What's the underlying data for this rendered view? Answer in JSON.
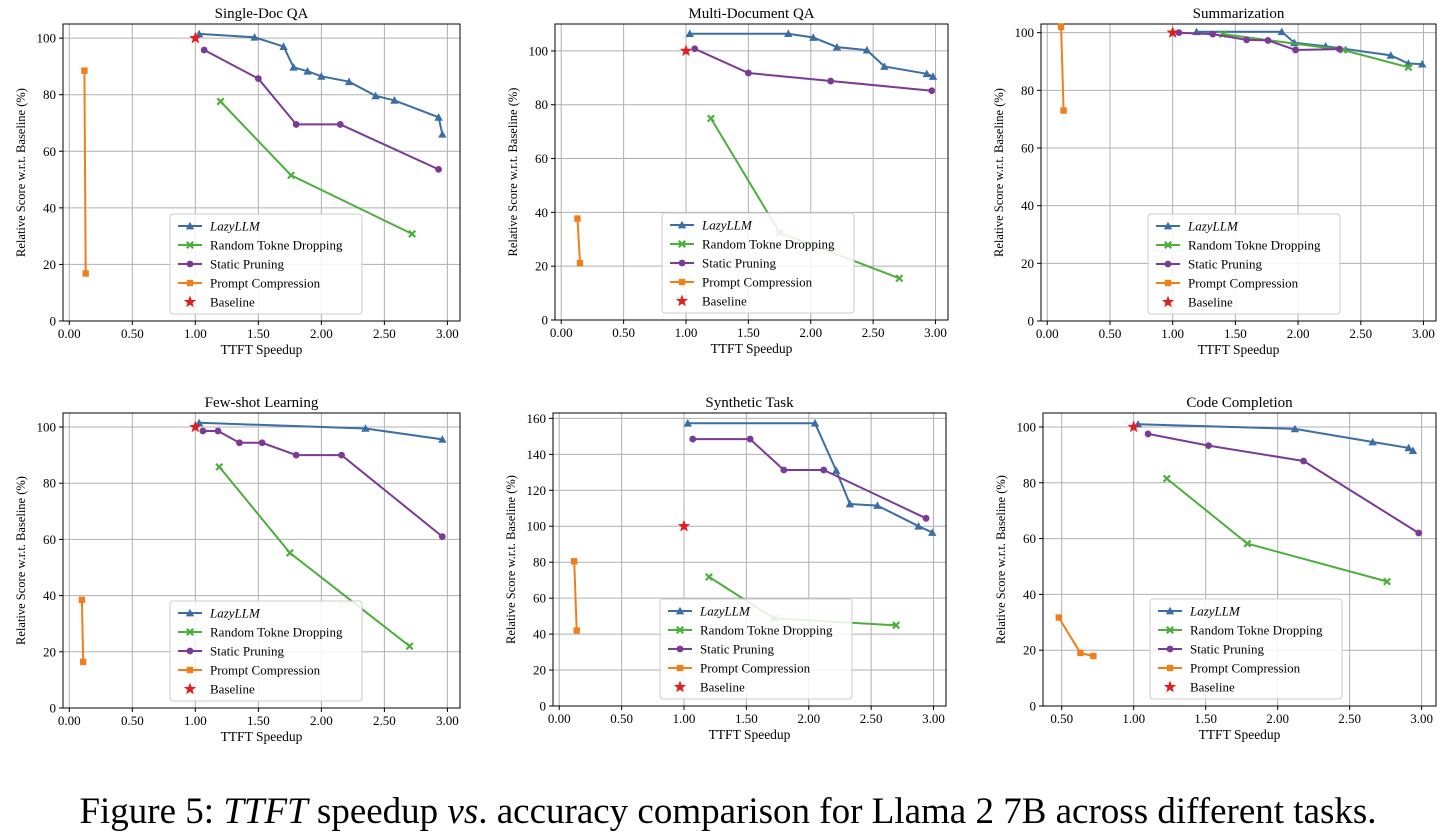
{
  "caption": {
    "prefix": "Figure 5: ",
    "italic1": "TTFT",
    "mid1": " speedup ",
    "italic2": "vs",
    "rest": ". accuracy comparison for Llama 2 7B across different tasks."
  },
  "colors": {
    "lazyllm": "#3a6ea5",
    "random": "#4caf3c",
    "static": "#7b3a96",
    "prompt": "#f07f1b",
    "baseline": "#e02020"
  },
  "legend": [
    "LazyLLM",
    "Random Tokne Dropping",
    "Static Pruning",
    "Prompt Compression",
    "Baseline"
  ],
  "chart_data": [
    {
      "type": "line",
      "title": "Single-Doc QA",
      "xlabel": "TTFT Speedup",
      "ylabel": "Relative Score w.r.t. Baseline (%)",
      "xlim": [
        -0.05,
        3.1
      ],
      "ylim": [
        0,
        105
      ],
      "xticks": [
        "0.00",
        "0.50",
        "1.00",
        "1.50",
        "2.00",
        "2.50",
        "3.00"
      ],
      "yticks": [
        "0",
        "20",
        "40",
        "60",
        "80",
        "100"
      ],
      "grid": true,
      "legend_position": "lower-center",
      "series": [
        {
          "name": "LazyLLM",
          "marker": "triangle",
          "x": [
            1.03,
            1.47,
            1.7,
            1.78,
            1.89,
            2.0,
            2.22,
            2.43,
            2.58,
            2.93,
            2.96
          ],
          "y": [
            101.5,
            100.3,
            97.0,
            89.7,
            88.3,
            86.5,
            84.6,
            79.6,
            78.0,
            72.0,
            66.0
          ]
        },
        {
          "name": "Random Tokne Dropping",
          "marker": "x",
          "x": [
            1.2,
            1.76,
            2.72
          ],
          "y": [
            77.6,
            51.5,
            30.8
          ]
        },
        {
          "name": "Static Pruning",
          "marker": "circle",
          "x": [
            1.07,
            1.5,
            1.8,
            2.15,
            2.93
          ],
          "y": [
            95.8,
            85.7,
            69.5,
            69.5,
            53.6
          ]
        },
        {
          "name": "Prompt Compression",
          "marker": "square",
          "x": [
            0.12,
            0.13
          ],
          "y": [
            88.5,
            16.8
          ]
        },
        {
          "name": "Baseline",
          "marker": "star",
          "x": [
            1.0
          ],
          "y": [
            100.0
          ]
        }
      ]
    },
    {
      "type": "line",
      "title": "Multi-Document QA",
      "xlabel": "TTFT Speedup",
      "ylabel": "Relative Score w.r.t. Baseline (%)",
      "xlim": [
        -0.05,
        3.1
      ],
      "ylim": [
        0,
        110
      ],
      "xticks": [
        "0.00",
        "0.50",
        "1.00",
        "1.50",
        "2.00",
        "2.50",
        "3.00"
      ],
      "yticks": [
        "0",
        "20",
        "40",
        "60",
        "80",
        "100"
      ],
      "grid": true,
      "legend_position": "lower-center",
      "series": [
        {
          "name": "LazyLLM",
          "marker": "triangle",
          "x": [
            1.03,
            1.82,
            2.02,
            2.21,
            2.45,
            2.59,
            2.93,
            2.98
          ],
          "y": [
            106.4,
            106.4,
            105.0,
            101.4,
            100.3,
            94.2,
            91.5,
            90.5
          ]
        },
        {
          "name": "Random Tokne Dropping",
          "marker": "x",
          "x": [
            1.2,
            1.75,
            2.71
          ],
          "y": [
            74.9,
            32.5,
            15.5
          ]
        },
        {
          "name": "Static Pruning",
          "marker": "circle",
          "x": [
            1.07,
            1.5,
            2.16,
            2.97
          ],
          "y": [
            100.8,
            91.8,
            88.8,
            85.2
          ]
        },
        {
          "name": "Prompt Compression",
          "marker": "square",
          "x": [
            0.13,
            0.15
          ],
          "y": [
            37.7,
            21.1
          ]
        },
        {
          "name": "Baseline",
          "marker": "star",
          "x": [
            1.0
          ],
          "y": [
            100.0
          ]
        }
      ]
    },
    {
      "type": "line",
      "title": "Summarization",
      "xlabel": "TTFT Speedup",
      "ylabel": "Relative Score w.r.t. Baseline (%)",
      "xlim": [
        -0.05,
        3.1
      ],
      "ylim": [
        0,
        103
      ],
      "xticks": [
        "0.00",
        "0.50",
        "1.00",
        "1.50",
        "2.00",
        "2.50",
        "3.00"
      ],
      "yticks": [
        "0",
        "20",
        "40",
        "60",
        "80",
        "100"
      ],
      "grid": true,
      "legend_position": "lower-center",
      "series": [
        {
          "name": "LazyLLM",
          "marker": "triangle",
          "x": [
            1.19,
            1.87,
            1.97,
            2.22,
            2.74,
            2.88,
            2.99
          ],
          "y": [
            100.3,
            100.3,
            96.5,
            95.3,
            92.1,
            89.3,
            89.1
          ]
        },
        {
          "name": "Random Tokne Dropping",
          "marker": "x",
          "x": [
            1.4,
            2.36,
            2.88
          ],
          "y": [
            99.5,
            94.0,
            88.0
          ]
        },
        {
          "name": "Static Pruning",
          "marker": "circle",
          "x": [
            1.05,
            1.32,
            1.59,
            1.76,
            1.98,
            2.33
          ],
          "y": [
            100.0,
            99.5,
            97.5,
            97.3,
            94.0,
            94.3
          ]
        },
        {
          "name": "Prompt Compression",
          "marker": "square",
          "x": [
            0.11,
            0.13
          ],
          "y": [
            102.0,
            73.0
          ]
        },
        {
          "name": "Baseline",
          "marker": "star",
          "x": [
            1.0
          ],
          "y": [
            100.0
          ]
        }
      ]
    },
    {
      "type": "line",
      "title": "Few-shot Learning",
      "xlabel": "TTFT Speedup",
      "ylabel": "Relative Score w.r.t. Baseline (%)",
      "xlim": [
        -0.05,
        3.1
      ],
      "ylim": [
        0,
        105
      ],
      "xticks": [
        "0.00",
        "0.50",
        "1.00",
        "1.50",
        "2.00",
        "2.50",
        "3.00"
      ],
      "yticks": [
        "0",
        "20",
        "40",
        "60",
        "80",
        "100"
      ],
      "grid": true,
      "legend_position": "lower-center",
      "series": [
        {
          "name": "LazyLLM",
          "marker": "triangle",
          "x": [
            1.03,
            2.35,
            2.96
          ],
          "y": [
            101.5,
            99.5,
            95.6
          ]
        },
        {
          "name": "Random Tokne Dropping",
          "marker": "x",
          "x": [
            1.19,
            1.75,
            2.7
          ],
          "y": [
            85.8,
            55.2,
            22.0
          ]
        },
        {
          "name": "Static Pruning",
          "marker": "circle",
          "x": [
            1.06,
            1.18,
            1.35,
            1.53,
            1.8,
            2.16,
            2.96
          ],
          "y": [
            98.6,
            98.6,
            94.4,
            94.4,
            90.0,
            90.0,
            61.0
          ]
        },
        {
          "name": "Prompt Compression",
          "marker": "square",
          "x": [
            0.1,
            0.11
          ],
          "y": [
            38.5,
            16.4
          ]
        },
        {
          "name": "Baseline",
          "marker": "star",
          "x": [
            1.0
          ],
          "y": [
            100.0
          ]
        }
      ]
    },
    {
      "type": "line",
      "title": "Synthetic Task",
      "xlabel": "TTFT Speedup",
      "ylabel": "Relative Score w.r.t. Baseline (%)",
      "xlim": [
        -0.05,
        3.1
      ],
      "ylim": [
        0,
        163
      ],
      "xticks": [
        "0.00",
        "0.50",
        "1.00",
        "1.50",
        "2.00",
        "2.50",
        "3.00"
      ],
      "yticks": [
        "0",
        "20",
        "40",
        "60",
        "80",
        "100",
        "120",
        "140",
        "160"
      ],
      "grid": true,
      "legend_position": "lower-center",
      "series": [
        {
          "name": "LazyLLM",
          "marker": "triangle",
          "x": [
            1.03,
            2.05,
            2.22,
            2.33,
            2.55,
            2.88,
            2.99
          ],
          "y": [
            157.3,
            157.3,
            131.0,
            112.4,
            111.5,
            100.0,
            96.5
          ]
        },
        {
          "name": "Random Tokne Dropping",
          "marker": "x",
          "x": [
            1.2,
            1.72,
            2.7
          ],
          "y": [
            71.8,
            48.8,
            44.9
          ]
        },
        {
          "name": "Static Pruning",
          "marker": "circle",
          "x": [
            1.07,
            1.53,
            1.8,
            2.12,
            2.94
          ],
          "y": [
            148.5,
            148.5,
            131.3,
            131.3,
            104.4
          ]
        },
        {
          "name": "Prompt Compression",
          "marker": "square",
          "x": [
            0.12,
            0.14
          ],
          "y": [
            80.5,
            42.0
          ]
        },
        {
          "name": "Baseline",
          "marker": "star",
          "x": [
            1.0
          ],
          "y": [
            100.0
          ]
        }
      ]
    },
    {
      "type": "line",
      "title": "Code Completion",
      "xlabel": "TTFT Speedup",
      "ylabel": "Relative Score w.r.t. Baseline (%)",
      "xlim": [
        0.37,
        3.1
      ],
      "ylim": [
        0,
        105
      ],
      "xticks": [
        "0.50",
        "1.00",
        "1.50",
        "2.00",
        "2.50",
        "3.00"
      ],
      "yticks": [
        "0",
        "20",
        "40",
        "60",
        "80",
        "100"
      ],
      "grid": true,
      "legend_position": "lower-center",
      "series": [
        {
          "name": "LazyLLM",
          "marker": "triangle",
          "x": [
            1.03,
            2.12,
            2.66,
            2.91,
            2.94
          ],
          "y": [
            101.0,
            99.3,
            94.6,
            92.5,
            91.5
          ]
        },
        {
          "name": "Random Tokne Dropping",
          "marker": "x",
          "x": [
            1.23,
            1.79,
            2.76
          ],
          "y": [
            81.5,
            58.2,
            44.6
          ]
        },
        {
          "name": "Static Pruning",
          "marker": "circle",
          "x": [
            1.1,
            1.52,
            2.18,
            2.98
          ],
          "y": [
            97.5,
            93.3,
            87.8,
            62.0
          ]
        },
        {
          "name": "Prompt Compression",
          "marker": "square",
          "x": [
            0.48,
            0.63,
            0.72
          ],
          "y": [
            31.7,
            19.0,
            17.9
          ]
        },
        {
          "name": "Baseline",
          "marker": "star",
          "x": [
            1.0
          ],
          "y": [
            100.0
          ]
        }
      ]
    }
  ]
}
